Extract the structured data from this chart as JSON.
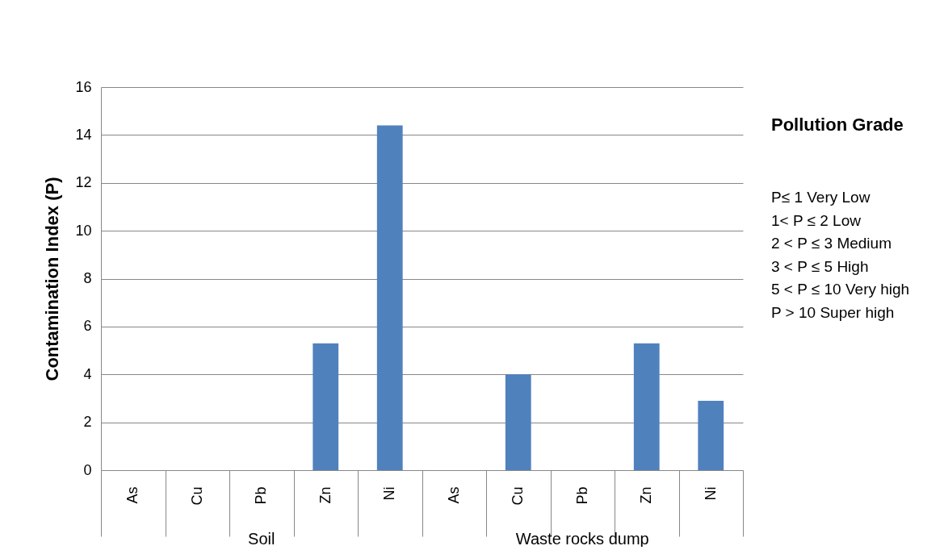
{
  "chart_data": {
    "type": "bar",
    "ylabel": "Contamination Index (P)",
    "categories": [
      "As",
      "Cu",
      "Pb",
      "Zn",
      "Ni",
      "As",
      "Cu",
      "Pb",
      "Zn",
      "Ni"
    ],
    "values": [
      0,
      0,
      0,
      5.3,
      14.4,
      0,
      4.0,
      0,
      5.3,
      2.9
    ],
    "color": "#4f81bd",
    "ylim": [
      0,
      16
    ],
    "yticks": [
      0,
      2,
      4,
      6,
      8,
      10,
      12,
      14,
      16
    ],
    "grid": "y",
    "annotations": [
      "Soil",
      "Waste rocks dump",
      "Pollution Grade",
      "P≤ 1 Very Low",
      "1< P ≤ 2 Low",
      "2 < P ≤ 3 Medium",
      "3 < P ≤ 5 High",
      "5 < P ≤ 10 Very high",
      "P > 10 Super high"
    ]
  }
}
